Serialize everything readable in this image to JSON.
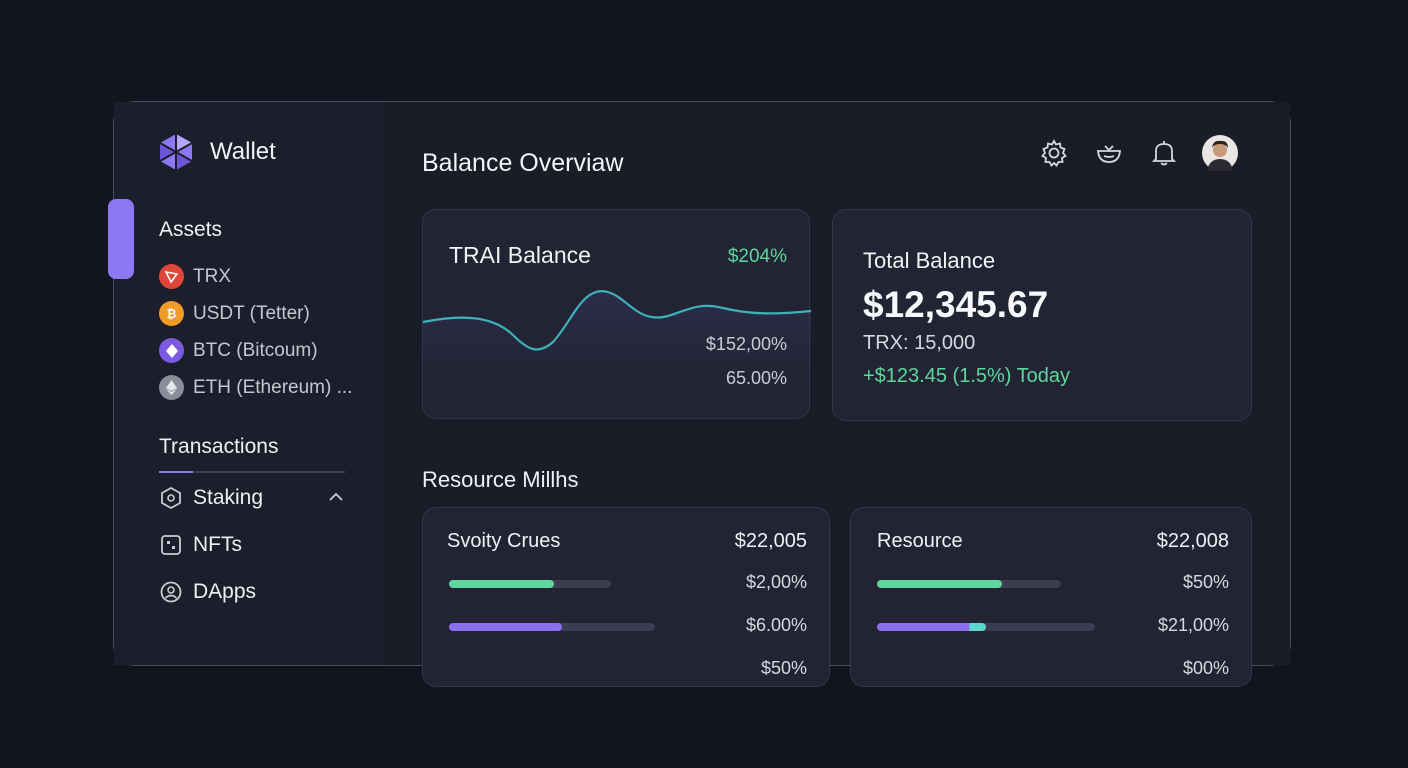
{
  "app": {
    "title": "Wallet"
  },
  "sidebar": {
    "assets_label": "Assets",
    "assets": [
      {
        "label": "TRX",
        "icon": "trx-icon",
        "color": "#e0473a"
      },
      {
        "label": "USDT (Tetter)",
        "icon": "usdt-icon",
        "color": "#f09a2a"
      },
      {
        "label": "BTC (Bitcoum)",
        "icon": "btc-icon",
        "color": "#7a5be0"
      },
      {
        "label": "ETH (Ethereum) ...",
        "icon": "eth-icon",
        "color": "#8a8d99"
      }
    ],
    "transactions_label": "Transactions",
    "nav": [
      {
        "label": "Staking",
        "icon": "staking-icon"
      },
      {
        "label": "NFTs",
        "icon": "nfts-icon"
      },
      {
        "label": "DApps",
        "icon": "dapps-icon"
      }
    ]
  },
  "header": {
    "title": "Balance Overviaw",
    "icons": [
      "gear-icon",
      "bowl-icon",
      "bell-icon",
      "avatar"
    ]
  },
  "trai_card": {
    "title": "TRAI Balance",
    "change": "$204%",
    "value1": "$152,00%",
    "value2": "65.00%"
  },
  "total_card": {
    "title": "Total Balance",
    "amount": "$12,345.67",
    "trx": "TRX: 15,000",
    "today": "+$123.45 (1.5%) Today"
  },
  "resources": {
    "title": "Resource Millhs",
    "cards": [
      {
        "name": "Svoity Crues",
        "total": "$22,005",
        "rows": [
          {
            "value": "$2,00%",
            "fill": 0.65,
            "color": "#5fd69c"
          },
          {
            "value": "$6.00%",
            "fill": 0.55,
            "color": "#8c6ef0"
          },
          {
            "value": "$50%"
          }
        ]
      },
      {
        "name": "Resource",
        "total": "$22,008",
        "rows": [
          {
            "value": "$50%",
            "fill": 0.68,
            "color": "#5fd69c"
          },
          {
            "value": "$21,00%",
            "fill": 0.5,
            "color": "#8c6ef0"
          },
          {
            "value": "$00%"
          }
        ]
      }
    ]
  },
  "colors": {
    "accent": "#8c78f0",
    "positive": "#5fd69c",
    "chart_line": "#3fb1b8"
  }
}
